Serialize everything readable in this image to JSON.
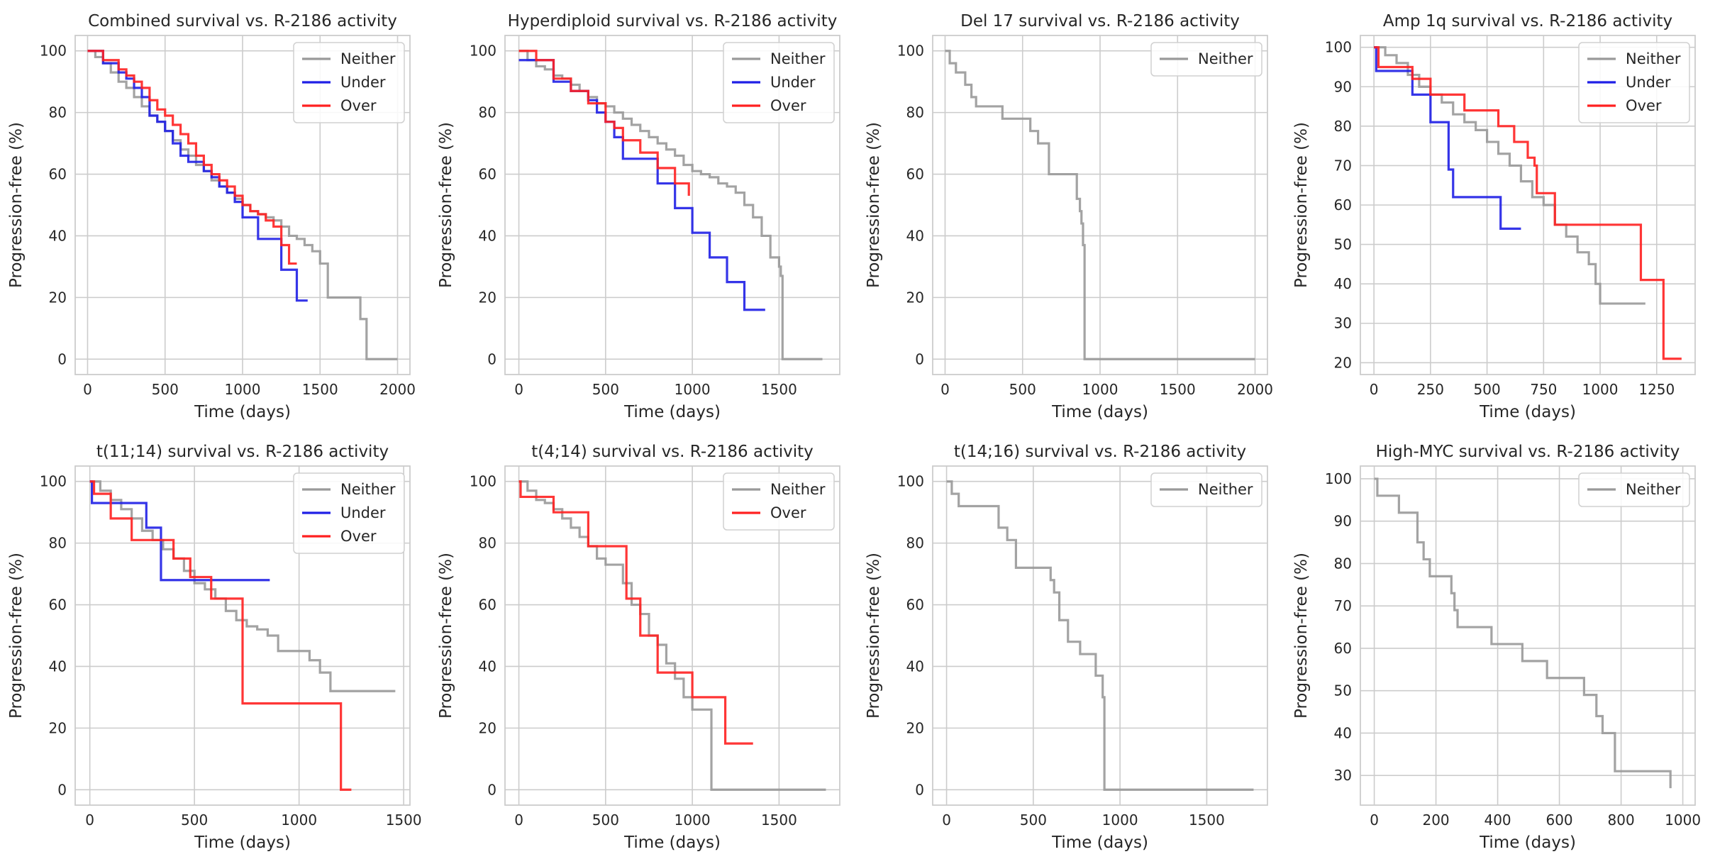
{
  "chart_data": [
    {
      "type": "line",
      "title": "Combined survival vs. R-2186 activity",
      "xlabel": "Time (days)",
      "ylabel": "Progression-free (%)",
      "xlim": [
        -80,
        2080
      ],
      "ylim": [
        -5,
        105
      ],
      "xticks": [
        0,
        500,
        1000,
        1500,
        2000
      ],
      "yticks": [
        0,
        20,
        40,
        60,
        80,
        100
      ],
      "grid": true,
      "legend": "top-right",
      "series": [
        {
          "name": "Neither",
          "color": "#999999",
          "x": [
            0,
            50,
            100,
            150,
            200,
            250,
            300,
            350,
            400,
            450,
            500,
            550,
            600,
            650,
            700,
            750,
            800,
            850,
            900,
            950,
            1000,
            1050,
            1100,
            1150,
            1200,
            1250,
            1300,
            1350,
            1400,
            1450,
            1500,
            1550,
            1600,
            1700,
            1750,
            1760,
            1800,
            2000
          ],
          "y": [
            100,
            98,
            96,
            93,
            90,
            88,
            85,
            82,
            79,
            77,
            74,
            71,
            68,
            66,
            63,
            61,
            58,
            56,
            54,
            52,
            50,
            48,
            47,
            46,
            45,
            43,
            40,
            39,
            37,
            35,
            31,
            20,
            20,
            20,
            20,
            13,
            0,
            0
          ]
        },
        {
          "name": "Under",
          "color": "#1f1fe6",
          "x": [
            0,
            100,
            200,
            250,
            300,
            350,
            400,
            450,
            500,
            550,
            600,
            650,
            700,
            750,
            800,
            850,
            900,
            950,
            1000,
            1050,
            1100,
            1150,
            1200,
            1250,
            1300,
            1350,
            1420
          ],
          "y": [
            100,
            96,
            93,
            91,
            88,
            85,
            79,
            77,
            74,
            70,
            66,
            64,
            64,
            61,
            59,
            56,
            54,
            51,
            46,
            46,
            39,
            39,
            39,
            29,
            29,
            19,
            19
          ]
        },
        {
          "name": "Over",
          "color": "#ff2020",
          "x": [
            0,
            100,
            200,
            250,
            300,
            350,
            400,
            450,
            500,
            550,
            600,
            650,
            700,
            750,
            800,
            850,
            900,
            950,
            1000,
            1050,
            1100,
            1150,
            1200,
            1250,
            1300,
            1350
          ],
          "y": [
            100,
            97,
            94,
            92,
            90,
            88,
            84,
            81,
            79,
            76,
            73,
            70,
            66,
            63,
            60,
            58,
            56,
            53,
            50,
            48,
            47,
            45,
            43,
            37,
            31,
            31
          ]
        }
      ]
    },
    {
      "type": "line",
      "title": "Hyperdiploid survival vs. R-2186 activity",
      "xlabel": "Time (days)",
      "ylabel": "Progression-free (%)",
      "xlim": [
        -80,
        1850
      ],
      "ylim": [
        -5,
        105
      ],
      "xticks": [
        0,
        500,
        1000,
        1500
      ],
      "yticks": [
        0,
        20,
        40,
        60,
        80,
        100
      ],
      "grid": true,
      "legend": "top-right",
      "series": [
        {
          "name": "Neither",
          "color": "#999999",
          "x": [
            0,
            50,
            100,
            150,
            200,
            250,
            300,
            350,
            400,
            450,
            500,
            550,
            600,
            650,
            700,
            750,
            800,
            850,
            900,
            950,
            1000,
            1050,
            1100,
            1150,
            1200,
            1250,
            1300,
            1350,
            1400,
            1450,
            1500,
            1510,
            1520,
            1750
          ],
          "y": [
            100,
            97,
            95,
            94,
            92,
            91,
            89,
            87,
            85,
            83,
            82,
            80,
            78,
            76,
            74,
            72,
            70,
            68,
            66,
            63,
            61,
            60,
            59,
            57,
            56,
            54,
            50,
            46,
            40,
            33,
            30,
            27,
            0,
            0
          ]
        },
        {
          "name": "Under",
          "color": "#1f1fe6",
          "x": [
            0,
            100,
            200,
            300,
            400,
            450,
            500,
            550,
            600,
            700,
            800,
            900,
            1000,
            1100,
            1200,
            1300,
            1350,
            1420
          ],
          "y": [
            97,
            97,
            90,
            87,
            84,
            80,
            77,
            72,
            65,
            65,
            57,
            49,
            41,
            33,
            25,
            16,
            16,
            16
          ]
        },
        {
          "name": "Over",
          "color": "#ff2020",
          "x": [
            0,
            100,
            200,
            300,
            400,
            500,
            550,
            600,
            700,
            800,
            900,
            950,
            980
          ],
          "y": [
            100,
            97,
            91,
            87,
            83,
            77,
            75,
            71,
            67,
            62,
            57,
            57,
            53
          ]
        }
      ]
    },
    {
      "type": "line",
      "title": "Del 17 survival vs. R-2186 activity",
      "xlabel": "Time (days)",
      "ylabel": "Progression-free (%)",
      "xlim": [
        -80,
        2080
      ],
      "ylim": [
        -5,
        105
      ],
      "xticks": [
        0,
        500,
        1000,
        1500,
        2000
      ],
      "yticks": [
        0,
        20,
        40,
        60,
        80,
        100
      ],
      "grid": true,
      "legend": "top-right",
      "series": [
        {
          "name": "Neither",
          "color": "#999999",
          "x": [
            0,
            30,
            70,
            130,
            170,
            200,
            370,
            550,
            600,
            670,
            850,
            870,
            880,
            890,
            900,
            920,
            2000
          ],
          "y": [
            100,
            96,
            93,
            89,
            85,
            82,
            78,
            74,
            70,
            60,
            52,
            48,
            44,
            37,
            0,
            0,
            0
          ]
        }
      ]
    },
    {
      "type": "line",
      "title": "Amp 1q survival vs. R-2186 activity",
      "xlabel": "Time (days)",
      "ylabel": "Progression-free (%)",
      "xlim": [
        -60,
        1420
      ],
      "ylim": [
        17,
        103
      ],
      "xticks": [
        0,
        250,
        500,
        750,
        1000,
        1250
      ],
      "yticks": [
        20,
        30,
        40,
        50,
        60,
        70,
        80,
        90,
        100
      ],
      "grid": true,
      "legend": "top-right",
      "series": [
        {
          "name": "Neither",
          "color": "#999999",
          "x": [
            0,
            50,
            100,
            150,
            200,
            250,
            300,
            350,
            400,
            450,
            500,
            550,
            600,
            650,
            700,
            750,
            800,
            850,
            900,
            950,
            980,
            1000,
            1100,
            1200
          ],
          "y": [
            100,
            98,
            96,
            93,
            90,
            88,
            86,
            83,
            81,
            79,
            76,
            73,
            70,
            66,
            62,
            60,
            55,
            52,
            48,
            45,
            40,
            35,
            35,
            35
          ]
        },
        {
          "name": "Under",
          "color": "#1f1fe6",
          "x": [
            0,
            10,
            170,
            250,
            330,
            350,
            500,
            560,
            650
          ],
          "y": [
            100,
            94,
            88,
            81,
            69,
            62,
            62,
            54,
            54
          ]
        },
        {
          "name": "Over",
          "color": "#ff2020",
          "x": [
            0,
            20,
            100,
            170,
            250,
            400,
            550,
            620,
            680,
            710,
            720,
            800,
            1000,
            1180,
            1250,
            1280,
            1360
          ],
          "y": [
            100,
            95,
            95,
            92,
            88,
            84,
            80,
            76,
            72,
            70,
            63,
            55,
            55,
            41,
            41,
            21,
            21
          ]
        }
      ]
    },
    {
      "type": "line",
      "title": "t(11;14) survival vs. R-2186 activity",
      "xlabel": "Time (days)",
      "ylabel": "Progression-free (%)",
      "xlim": [
        -70,
        1530
      ],
      "ylim": [
        -5,
        105
      ],
      "xticks": [
        0,
        500,
        1000,
        1500
      ],
      "yticks": [
        0,
        20,
        40,
        60,
        80,
        100
      ],
      "grid": true,
      "legend": "top-right",
      "series": [
        {
          "name": "Neither",
          "color": "#999999",
          "x": [
            0,
            50,
            100,
            150,
            200,
            250,
            300,
            350,
            400,
            450,
            500,
            550,
            600,
            650,
            700,
            750,
            800,
            850,
            900,
            950,
            1000,
            1050,
            1100,
            1150,
            1200,
            1300,
            1460
          ],
          "y": [
            100,
            97,
            94,
            91,
            88,
            84,
            81,
            78,
            75,
            71,
            67,
            65,
            62,
            58,
            55,
            53,
            52,
            50,
            45,
            45,
            45,
            42,
            38,
            32,
            32,
            32,
            32
          ]
        },
        {
          "name": "Under",
          "color": "#1f1fe6",
          "x": [
            0,
            10,
            270,
            340,
            860
          ],
          "y": [
            100,
            93,
            85,
            68,
            68
          ]
        },
        {
          "name": "Over",
          "color": "#ff2020",
          "x": [
            0,
            20,
            100,
            200,
            400,
            480,
            580,
            730,
            1000,
            1200,
            1250
          ],
          "y": [
            100,
            96,
            88,
            81,
            75,
            69,
            62,
            28,
            28,
            0,
            0
          ]
        }
      ]
    },
    {
      "type": "line",
      "title": "t(4;14) survival vs. R-2186 activity",
      "xlabel": "Time (days)",
      "ylabel": "Progression-free (%)",
      "xlim": [
        -80,
        1850
      ],
      "ylim": [
        -5,
        105
      ],
      "xticks": [
        0,
        500,
        1000,
        1500
      ],
      "yticks": [
        0,
        20,
        40,
        60,
        80,
        100
      ],
      "grid": true,
      "legend": "top-right",
      "series": [
        {
          "name": "Neither",
          "color": "#999999",
          "x": [
            0,
            50,
            100,
            150,
            200,
            250,
            300,
            350,
            400,
            450,
            500,
            550,
            600,
            650,
            700,
            750,
            800,
            850,
            900,
            950,
            1000,
            1050,
            1100,
            1110,
            1770
          ],
          "y": [
            100,
            97,
            94,
            93,
            91,
            88,
            85,
            82,
            79,
            75,
            73,
            73,
            67,
            60,
            57,
            50,
            47,
            41,
            36,
            30,
            26,
            26,
            26,
            0,
            0
          ]
        },
        {
          "name": "Over",
          "color": "#ff2020",
          "x": [
            0,
            10,
            200,
            400,
            600,
            620,
            700,
            800,
            1000,
            1190,
            1350
          ],
          "y": [
            100,
            95,
            90,
            79,
            79,
            62,
            50,
            38,
            30,
            15,
            15
          ]
        }
      ]
    },
    {
      "type": "line",
      "title": "t(14;16) survival vs. R-2186 activity",
      "xlabel": "Time (days)",
      "ylabel": "Progression-free (%)",
      "xlim": [
        -80,
        1850
      ],
      "ylim": [
        -5,
        105
      ],
      "xticks": [
        0,
        500,
        1000,
        1500
      ],
      "yticks": [
        0,
        20,
        40,
        60,
        80,
        100
      ],
      "grid": true,
      "legend": "top-right",
      "series": [
        {
          "name": "Neither",
          "color": "#999999",
          "x": [
            0,
            30,
            70,
            300,
            350,
            400,
            600,
            620,
            650,
            700,
            770,
            860,
            900,
            910,
            1770
          ],
          "y": [
            100,
            96,
            92,
            85,
            81,
            72,
            68,
            64,
            55,
            48,
            44,
            37,
            30,
            0,
            0
          ]
        }
      ]
    },
    {
      "type": "line",
      "title": "High-MYC survival vs. R-2186 activity",
      "xlabel": "Time (days)",
      "ylabel": "Progression-free (%)",
      "xlim": [
        -45,
        1040
      ],
      "ylim": [
        23,
        103
      ],
      "xticks": [
        0,
        200,
        400,
        600,
        800,
        1000
      ],
      "yticks": [
        30,
        40,
        50,
        60,
        70,
        80,
        90,
        100
      ],
      "grid": true,
      "legend": "top-right",
      "series": [
        {
          "name": "Neither",
          "color": "#999999",
          "x": [
            0,
            10,
            80,
            140,
            160,
            180,
            250,
            260,
            270,
            380,
            480,
            560,
            680,
            720,
            740,
            780,
            960
          ],
          "y": [
            100,
            96,
            92,
            85,
            81,
            77,
            73,
            69,
            65,
            61,
            57,
            53,
            49,
            44,
            40,
            31,
            27
          ]
        }
      ]
    }
  ]
}
